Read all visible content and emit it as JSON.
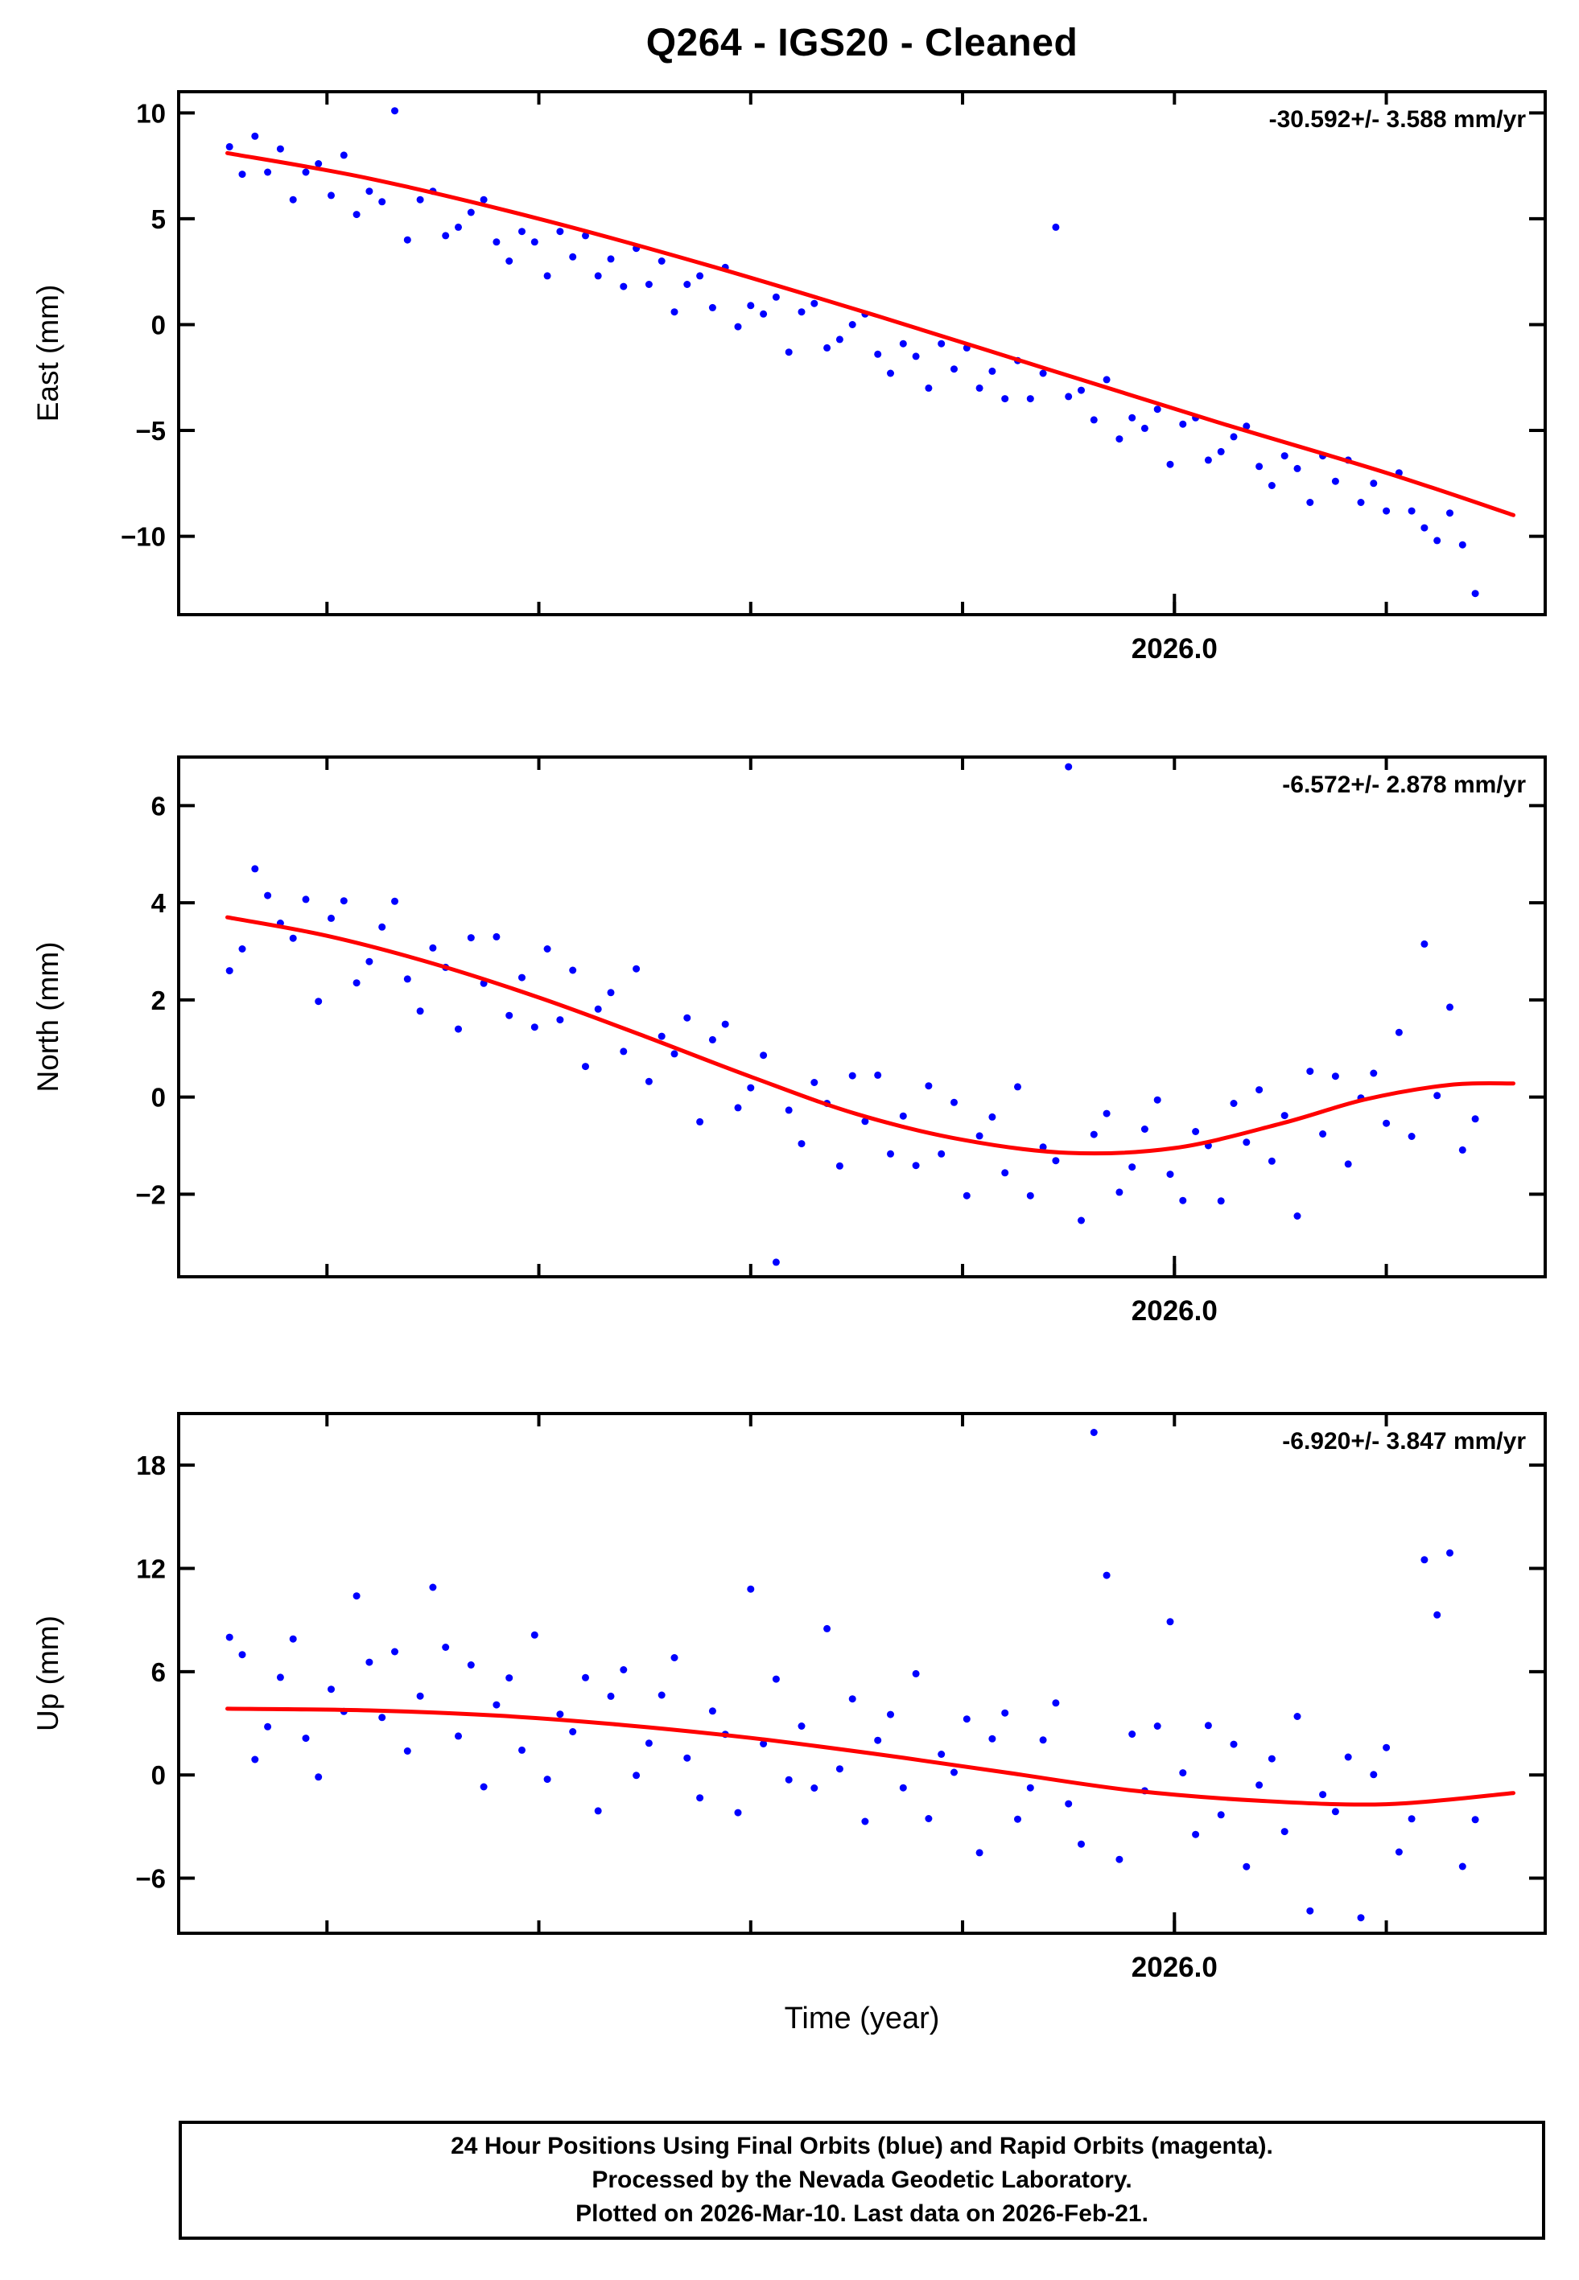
{
  "title": "Q264  - IGS20 - Cleaned",
  "xlabel": "Time (year)",
  "caption": {
    "line1": "24 Hour Positions Using Final Orbits (blue) and Rapid Orbits (magenta).",
    "line2": "Processed by the Nevada Geodetic Laboratory.",
    "line3": "Plotted on 2026-Mar-10. Last data on 2026-Feb-21."
  },
  "colors": {
    "points": "#0000ff",
    "fit": "#ff0000",
    "frame": "#000000"
  },
  "chart_data": {
    "type": "scatter",
    "x_axis": {
      "lim": [
        2025.53,
        2026.175
      ],
      "major_tick": {
        "value": 2026.0,
        "label": "2026.0"
      },
      "minor_ticks": [
        2025.6,
        2025.7,
        2025.8,
        2025.9,
        2026.0,
        2026.1
      ]
    },
    "panels": [
      {
        "id": "east",
        "ylabel": "East (mm)",
        "rate_label": "-30.592+/- 3.588 mm/yr",
        "ylim": [
          -13.7,
          11.0
        ],
        "yticks": [
          10,
          5,
          0,
          -5,
          -10
        ],
        "points": {
          "x_start": 2025.554,
          "x_step": 0.006,
          "y": [
            8.4,
            7.1,
            8.9,
            7.2,
            8.3,
            5.9,
            7.2,
            7.6,
            6.1,
            8.0,
            5.2,
            6.3,
            5.8,
            10.1,
            4.0,
            5.9,
            6.3,
            4.2,
            4.6,
            5.3,
            5.9,
            3.9,
            3.0,
            4.4,
            3.9,
            2.3,
            4.4,
            3.2,
            4.2,
            2.3,
            3.1,
            1.8,
            3.6,
            1.9,
            3.0,
            0.6,
            1.9,
            2.3,
            0.8,
            2.7,
            -0.1,
            0.9,
            0.5,
            1.3,
            -1.3,
            0.6,
            1.0,
            -1.1,
            -0.7,
            0.0,
            0.5,
            -1.4,
            -2.3,
            -0.9,
            -1.5,
            -3.0,
            -0.9,
            -2.1,
            -1.1,
            -3.0,
            -2.2,
            -3.5,
            -1.7,
            -3.5,
            -2.3,
            4.6,
            -3.4,
            -3.1,
            -4.5,
            -2.6,
            -5.4,
            -4.4,
            -4.9,
            -4.0,
            -6.6,
            -4.7,
            -4.4,
            -6.4,
            -6.0,
            -5.3,
            -4.8,
            -6.7,
            -7.6,
            -6.2,
            -6.8,
            -8.4,
            -6.2,
            -7.4,
            -6.4,
            -8.4,
            -7.5,
            -8.8,
            -7.0,
            -8.8,
            -9.6,
            -10.2,
            -8.9,
            -10.4,
            -12.7
          ]
        },
        "fit": {
          "x": [
            2025.553,
            2025.62,
            2025.7,
            2025.78,
            2025.86,
            2025.94,
            2026.02,
            2026.1,
            2026.16
          ],
          "y": [
            8.1,
            6.9,
            5.0,
            2.8,
            0.4,
            -2.1,
            -4.6,
            -7.0,
            -9.0
          ]
        }
      },
      {
        "id": "north",
        "ylabel": "North (mm)",
        "rate_label": "-6.572+/- 2.878 mm/yr",
        "ylim": [
          -3.7,
          7.0
        ],
        "yticks": [
          6,
          4,
          2,
          0,
          -2
        ],
        "points": {
          "x_start": 2025.554,
          "x_step": 0.006,
          "y": [
            2.6,
            3.05,
            4.7,
            4.15,
            3.58,
            3.27,
            4.07,
            1.97,
            3.68,
            4.04,
            2.35,
            2.79,
            3.5,
            4.03,
            2.43,
            1.77,
            3.07,
            2.67,
            1.4,
            3.28,
            2.34,
            3.3,
            1.68,
            2.46,
            1.44,
            3.05,
            1.59,
            2.61,
            0.63,
            1.81,
            2.15,
            0.94,
            2.64,
            0.32,
            1.25,
            0.89,
            1.63,
            -0.51,
            1.18,
            1.5,
            -0.22,
            0.19,
            0.86,
            -3.4,
            -0.27,
            -0.96,
            0.3,
            -0.13,
            -1.42,
            0.44,
            -0.5,
            0.45,
            -1.17,
            -0.39,
            -1.41,
            0.23,
            -1.17,
            -0.11,
            -2.03,
            -0.8,
            -0.41,
            -1.56,
            0.21,
            -2.03,
            -1.03,
            -1.31,
            6.8,
            -2.54,
            -0.77,
            -0.34,
            -1.96,
            -1.44,
            -0.66,
            -0.06,
            -1.59,
            -2.13,
            -0.71,
            -1.0,
            -2.14,
            -0.13,
            -0.93,
            0.15,
            -1.32,
            -0.38,
            -2.45,
            0.53,
            -0.76,
            0.43,
            -1.38,
            -0.02,
            0.49,
            -0.54,
            1.33,
            -0.81,
            3.15,
            0.03,
            1.85,
            -1.09,
            -0.45
          ]
        },
        "fit": {
          "x": [
            2025.553,
            2025.6,
            2025.65,
            2025.7,
            2025.75,
            2025.8,
            2025.85,
            2025.9,
            2025.95,
            2026.0,
            2026.05,
            2026.09,
            2026.13,
            2026.16
          ],
          "y": [
            3.7,
            3.32,
            2.75,
            2.05,
            1.25,
            0.42,
            -0.35,
            -0.88,
            -1.15,
            -1.05,
            -0.55,
            -0.05,
            0.25,
            0.28
          ]
        }
      },
      {
        "id": "up",
        "ylabel": "Up (mm)",
        "rate_label": "-6.920+/- 3.847 mm/yr",
        "ylim": [
          -9.2,
          21.0
        ],
        "yticks": [
          18,
          12,
          6,
          0,
          -6
        ],
        "points": {
          "x_start": 2025.554,
          "x_step": 0.006,
          "y": [
            8.0,
            6.99,
            0.9,
            2.8,
            5.67,
            7.9,
            2.13,
            -0.12,
            4.98,
            3.69,
            10.4,
            6.55,
            3.34,
            7.16,
            1.39,
            4.58,
            10.9,
            7.42,
            2.26,
            6.39,
            -0.69,
            4.07,
            5.64,
            1.44,
            8.13,
            -0.25,
            3.53,
            2.51,
            5.65,
            -2.09,
            4.57,
            6.11,
            -0.03,
            1.84,
            4.64,
            6.81,
            0.98,
            -1.33,
            3.71,
            2.36,
            -2.19,
            10.8,
            1.81,
            5.57,
            -0.28,
            2.84,
            -0.76,
            8.5,
            0.35,
            4.42,
            -2.7,
            2.01,
            3.51,
            -0.75,
            5.88,
            -2.54,
            1.2,
            0.15,
            3.25,
            -4.52,
            2.1,
            3.6,
            -2.57,
            -0.75,
            2.03,
            4.18,
            -1.68,
            -4.02,
            19.9,
            11.6,
            -4.91,
            2.37,
            -0.92,
            2.84,
            8.9,
            0.12,
            -3.46,
            2.87,
            -2.32,
            1.78,
            -5.33,
            -0.59,
            0.94,
            -3.29,
            3.4,
            -7.9,
            -1.14,
            -2.13,
            1.04,
            -8.3,
            0.02,
            1.59,
            -4.48,
            -2.55,
            12.5,
            9.3,
            12.9,
            -5.32,
            -2.6
          ]
        },
        "fit": {
          "x": [
            2025.553,
            2025.62,
            2025.68,
            2025.74,
            2025.8,
            2025.86,
            2025.92,
            2025.98,
            2026.04,
            2026.1,
            2026.16
          ],
          "y": [
            3.85,
            3.75,
            3.45,
            2.9,
            2.15,
            1.2,
            0.15,
            -0.9,
            -1.5,
            -1.7,
            -1.05
          ]
        }
      }
    ]
  }
}
